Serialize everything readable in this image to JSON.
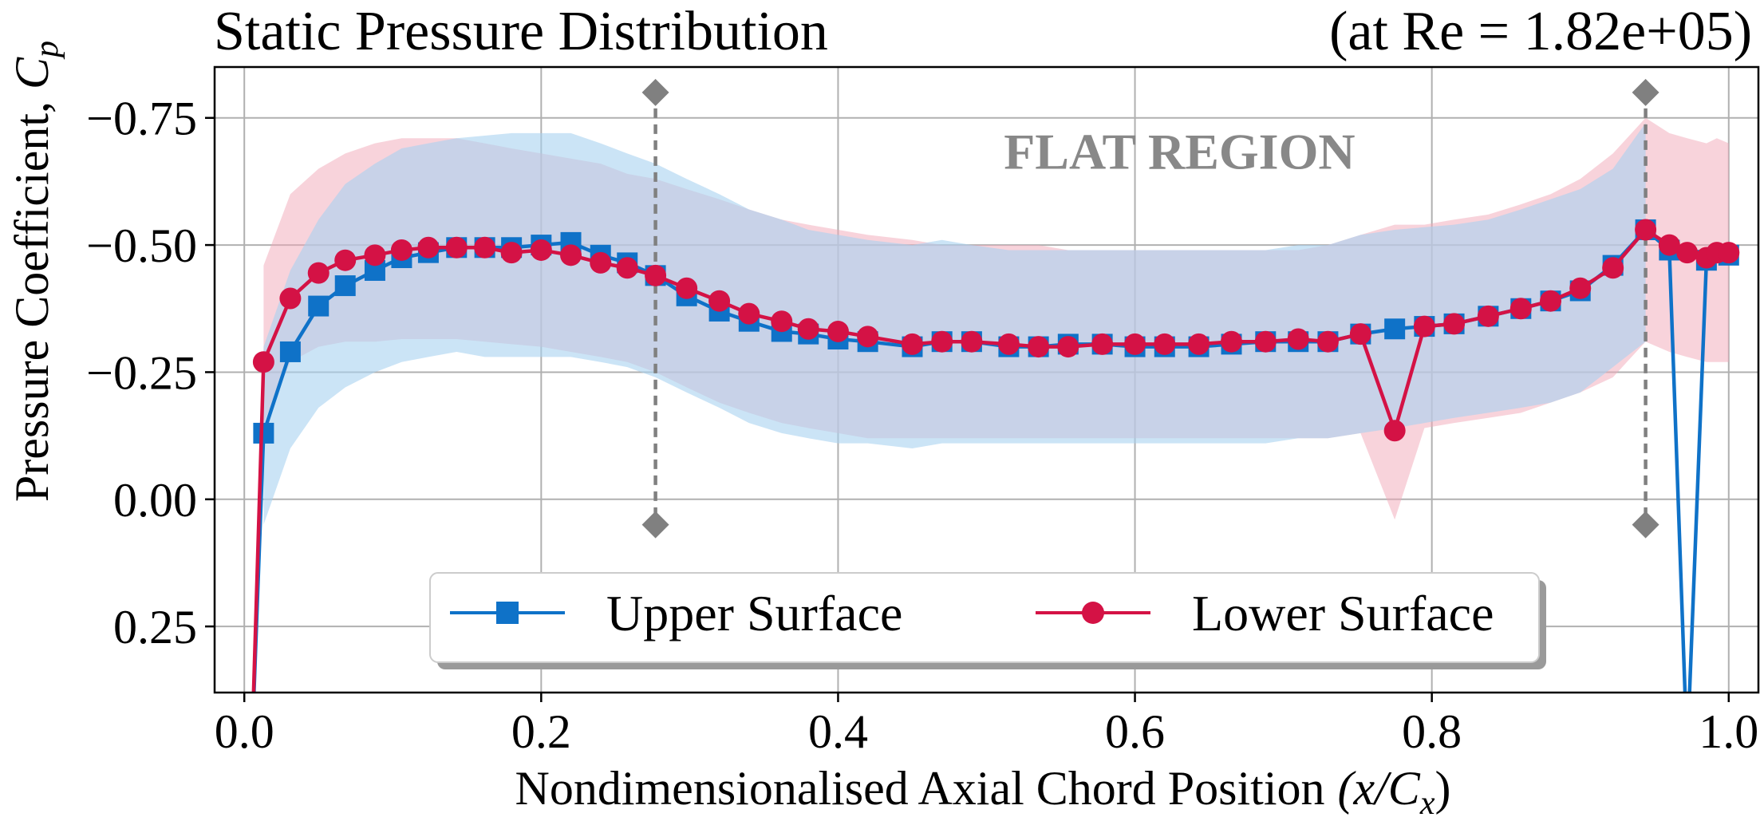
{
  "chart_data": {
    "type": "line",
    "title": "Static Pressure Distribution",
    "subtitle": "(at Re = 1.82e+05)",
    "xlabel": "Nondimensionalised Axial Chord Position",
    "xlabel_math": "(x/C",
    "xlabel_math_sub": "x",
    "xlabel_math_close": ")",
    "ylabel": "Pressure Coefficient, ",
    "ylabel_symbol": "C",
    "ylabel_symbol_sub": "p",
    "xlim": [
      -0.02,
      1.02
    ],
    "ylim": [
      0.38,
      -0.85
    ],
    "y_inverted": true,
    "grid": true,
    "x_ticks": [
      0.0,
      0.2,
      0.4,
      0.6,
      0.8,
      1.0
    ],
    "x_tick_labels": [
      "0.0",
      "0.2",
      "0.4",
      "0.6",
      "0.8",
      "1.0"
    ],
    "y_ticks": [
      -0.75,
      -0.5,
      -0.25,
      0.0,
      0.25
    ],
    "y_tick_labels": [
      "−0.75",
      "−0.50",
      "−0.25",
      "0.00",
      "0.25"
    ],
    "annotation": "FLAT REGION",
    "annotation_color": "#888888",
    "markers_x": [
      0.277,
      0.944
    ],
    "marker_y_range": [
      -0.8,
      0.05
    ],
    "marker_color": "#808080",
    "legend_position": "lower-center",
    "series": [
      {
        "name": "Upper Surface",
        "color": "#0F72C8",
        "band_color": "#A9D2F0",
        "marker": "square",
        "x": [
          0.005,
          0.013,
          0.031,
          0.05,
          0.068,
          0.088,
          0.106,
          0.124,
          0.143,
          0.162,
          0.18,
          0.2,
          0.22,
          0.24,
          0.258,
          0.277,
          0.298,
          0.32,
          0.34,
          0.362,
          0.38,
          0.4,
          0.42,
          0.45,
          0.47,
          0.49,
          0.515,
          0.535,
          0.555,
          0.578,
          0.6,
          0.62,
          0.643,
          0.665,
          0.688,
          0.71,
          0.73,
          0.752,
          0.775,
          0.795,
          0.815,
          0.838,
          0.86,
          0.88,
          0.9,
          0.922,
          0.944,
          0.96,
          0.972,
          0.985,
          1.0
        ],
        "values": [
          0.5,
          -0.13,
          -0.29,
          -0.38,
          -0.42,
          -0.45,
          -0.475,
          -0.485,
          -0.495,
          -0.495,
          -0.495,
          -0.5,
          -0.505,
          -0.48,
          -0.465,
          -0.44,
          -0.4,
          -0.37,
          -0.35,
          -0.33,
          -0.325,
          -0.315,
          -0.31,
          -0.3,
          -0.31,
          -0.31,
          -0.3,
          -0.3,
          -0.305,
          -0.305,
          -0.3,
          -0.3,
          -0.3,
          -0.305,
          -0.31,
          -0.31,
          -0.31,
          -0.325,
          -0.335,
          -0.34,
          -0.345,
          -0.36,
          -0.375,
          -0.39,
          -0.41,
          -0.46,
          -0.53,
          -0.49,
          0.5,
          -0.47,
          -0.48
        ],
        "marker_indices": [
          1,
          2,
          3,
          4,
          5,
          6,
          7,
          8,
          9,
          10,
          11,
          12,
          13,
          14,
          15,
          16,
          17,
          18,
          19,
          20,
          21,
          22,
          23,
          24,
          25,
          26,
          27,
          28,
          29,
          30,
          31,
          32,
          33,
          34,
          35,
          36,
          37,
          38,
          39,
          40,
          41,
          42,
          43,
          44,
          45,
          46,
          47,
          49,
          50
        ],
        "band_x": [
          0.013,
          0.031,
          0.05,
          0.068,
          0.088,
          0.106,
          0.124,
          0.143,
          0.162,
          0.18,
          0.2,
          0.22,
          0.24,
          0.258,
          0.277,
          0.298,
          0.32,
          0.34,
          0.362,
          0.38,
          0.4,
          0.42,
          0.45,
          0.47,
          0.49,
          0.515,
          0.535,
          0.555,
          0.578,
          0.6,
          0.62,
          0.643,
          0.665,
          0.688,
          0.71,
          0.73,
          0.752,
          0.775,
          0.795,
          0.815,
          0.838,
          0.86,
          0.88,
          0.9,
          0.922,
          0.944
        ],
        "band_lower": [
          0.05,
          -0.1,
          -0.18,
          -0.22,
          -0.25,
          -0.27,
          -0.28,
          -0.29,
          -0.28,
          -0.28,
          -0.28,
          -0.28,
          -0.27,
          -0.26,
          -0.24,
          -0.21,
          -0.18,
          -0.15,
          -0.13,
          -0.12,
          -0.11,
          -0.11,
          -0.1,
          -0.11,
          -0.11,
          -0.11,
          -0.11,
          -0.11,
          -0.11,
          -0.11,
          -0.11,
          -0.11,
          -0.11,
          -0.11,
          -0.12,
          -0.12,
          -0.13,
          -0.14,
          -0.15,
          -0.16,
          -0.17,
          -0.18,
          -0.19,
          -0.21,
          -0.26,
          -0.31
        ],
        "band_upper": [
          -0.3,
          -0.45,
          -0.55,
          -0.62,
          -0.66,
          -0.69,
          -0.7,
          -0.71,
          -0.715,
          -0.72,
          -0.72,
          -0.72,
          -0.7,
          -0.68,
          -0.66,
          -0.63,
          -0.6,
          -0.57,
          -0.55,
          -0.53,
          -0.52,
          -0.51,
          -0.5,
          -0.51,
          -0.5,
          -0.49,
          -0.49,
          -0.49,
          -0.49,
          -0.49,
          -0.49,
          -0.49,
          -0.49,
          -0.49,
          -0.5,
          -0.5,
          -0.52,
          -0.53,
          -0.535,
          -0.54,
          -0.55,
          -0.57,
          -0.59,
          -0.61,
          -0.65,
          -0.74
        ]
      },
      {
        "name": "Lower Surface",
        "color": "#D41245",
        "band_color": "#F2A7B8",
        "marker": "circle",
        "x": [
          0.005,
          0.013,
          0.031,
          0.05,
          0.068,
          0.088,
          0.106,
          0.124,
          0.143,
          0.162,
          0.18,
          0.2,
          0.22,
          0.24,
          0.258,
          0.277,
          0.298,
          0.32,
          0.34,
          0.362,
          0.38,
          0.4,
          0.42,
          0.45,
          0.47,
          0.49,
          0.515,
          0.535,
          0.555,
          0.578,
          0.6,
          0.62,
          0.643,
          0.665,
          0.688,
          0.71,
          0.73,
          0.752,
          0.775,
          0.795,
          0.815,
          0.838,
          0.86,
          0.88,
          0.9,
          0.922,
          0.944,
          0.96,
          0.972,
          0.985,
          0.992,
          1.0
        ],
        "values": [
          0.5,
          -0.27,
          -0.395,
          -0.445,
          -0.47,
          -0.48,
          -0.49,
          -0.495,
          -0.495,
          -0.495,
          -0.485,
          -0.49,
          -0.48,
          -0.465,
          -0.455,
          -0.44,
          -0.415,
          -0.39,
          -0.365,
          -0.35,
          -0.335,
          -0.33,
          -0.32,
          -0.305,
          -0.31,
          -0.31,
          -0.305,
          -0.3,
          -0.3,
          -0.305,
          -0.305,
          -0.305,
          -0.305,
          -0.31,
          -0.31,
          -0.315,
          -0.31,
          -0.325,
          -0.135,
          -0.34,
          -0.345,
          -0.36,
          -0.375,
          -0.39,
          -0.415,
          -0.455,
          -0.53,
          -0.5,
          -0.485,
          -0.475,
          -0.485,
          -0.485
        ],
        "marker_indices": [
          1,
          2,
          3,
          4,
          5,
          6,
          7,
          8,
          9,
          10,
          11,
          12,
          13,
          14,
          15,
          16,
          17,
          18,
          19,
          20,
          21,
          22,
          23,
          24,
          25,
          26,
          27,
          28,
          29,
          30,
          31,
          32,
          33,
          34,
          35,
          36,
          37,
          38,
          39,
          40,
          41,
          42,
          43,
          44,
          45,
          46,
          47,
          48,
          49,
          50,
          51
        ],
        "band_x": [
          0.013,
          0.031,
          0.05,
          0.068,
          0.088,
          0.106,
          0.124,
          0.143,
          0.162,
          0.18,
          0.2,
          0.22,
          0.24,
          0.258,
          0.277,
          0.298,
          0.32,
          0.34,
          0.362,
          0.38,
          0.4,
          0.42,
          0.45,
          0.47,
          0.49,
          0.515,
          0.535,
          0.555,
          0.578,
          0.6,
          0.62,
          0.643,
          0.665,
          0.688,
          0.71,
          0.73,
          0.752,
          0.775,
          0.795,
          0.815,
          0.838,
          0.86,
          0.88,
          0.9,
          0.922,
          0.944,
          0.96,
          0.972,
          0.985,
          0.992,
          1.0
        ],
        "band_lower": [
          -0.15,
          -0.27,
          -0.3,
          -0.31,
          -0.31,
          -0.315,
          -0.315,
          -0.315,
          -0.31,
          -0.305,
          -0.3,
          -0.29,
          -0.28,
          -0.27,
          -0.25,
          -0.22,
          -0.19,
          -0.17,
          -0.15,
          -0.14,
          -0.13,
          -0.12,
          -0.12,
          -0.12,
          -0.12,
          -0.12,
          -0.12,
          -0.12,
          -0.12,
          -0.12,
          -0.12,
          -0.12,
          -0.12,
          -0.12,
          -0.12,
          -0.12,
          -0.13,
          0.04,
          -0.14,
          -0.15,
          -0.16,
          -0.17,
          -0.19,
          -0.21,
          -0.24,
          -0.31,
          -0.29,
          -0.28,
          -0.27,
          -0.27,
          -0.27
        ],
        "band_upper": [
          -0.46,
          -0.6,
          -0.65,
          -0.68,
          -0.7,
          -0.71,
          -0.71,
          -0.71,
          -0.7,
          -0.69,
          -0.68,
          -0.67,
          -0.66,
          -0.64,
          -0.63,
          -0.61,
          -0.59,
          -0.57,
          -0.55,
          -0.54,
          -0.53,
          -0.52,
          -0.51,
          -0.5,
          -0.5,
          -0.5,
          -0.5,
          -0.49,
          -0.49,
          -0.49,
          -0.49,
          -0.49,
          -0.49,
          -0.49,
          -0.49,
          -0.5,
          -0.52,
          -0.54,
          -0.54,
          -0.55,
          -0.56,
          -0.58,
          -0.6,
          -0.63,
          -0.68,
          -0.75,
          -0.72,
          -0.71,
          -0.7,
          -0.71,
          -0.7
        ]
      }
    ]
  }
}
